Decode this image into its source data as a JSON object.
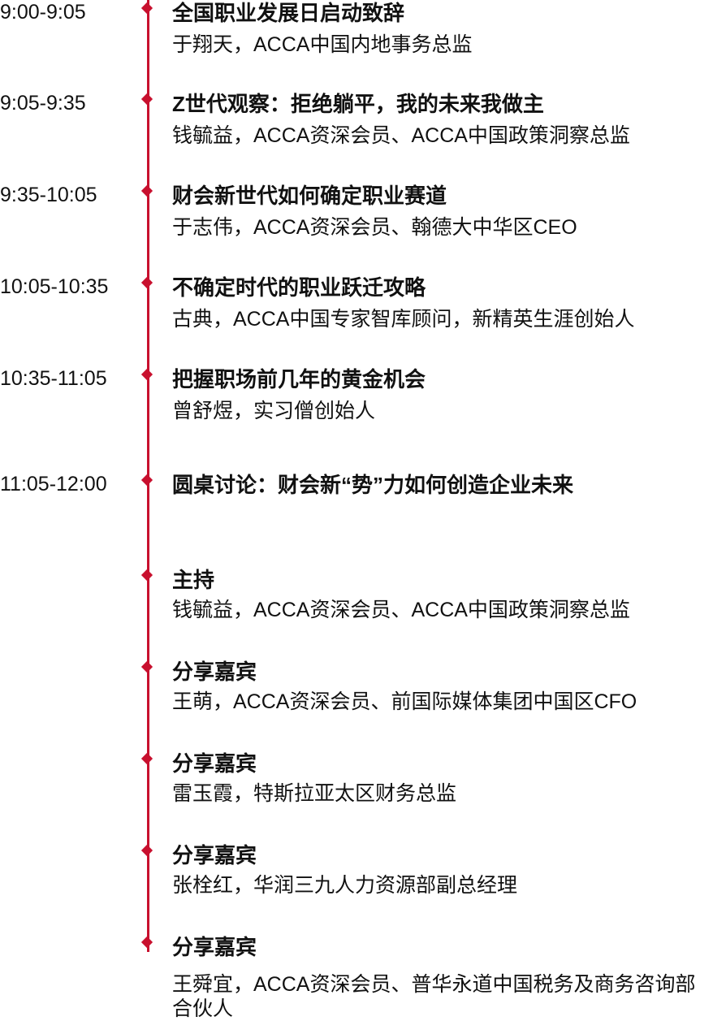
{
  "agenda": {
    "items": [
      {
        "time": "9:00-9:05",
        "title": "全国职业发展日启动致辞",
        "speaker": "于翔天，ACCA中国内地事务总监"
      },
      {
        "time": "9:05-9:35",
        "title": "Z世代观察：拒绝躺平，我的未来我做主",
        "speaker": "钱毓益，ACCA资深会员、ACCA中国政策洞察总监"
      },
      {
        "time": "9:35-10:05",
        "title": "财会新世代如何确定职业赛道",
        "speaker": "于志伟，ACCA资深会员、翰德大中华区CEO"
      },
      {
        "time": "10:05-10:35",
        "title": "不确定时代的职业跃迁攻略",
        "speaker": "古典，ACCA中国专家智库顾问，新精英生涯创始人"
      },
      {
        "time": "10:35-11:05",
        "title": "把握职场前几年的黄金机会",
        "speaker": "曾舒煜，实习僧创始人"
      },
      {
        "time": "11:05-12:00",
        "title": "圆桌讨论：财会新“势”力如何创造企业未来"
      }
    ],
    "panel": [
      {
        "role": "主持",
        "speaker": "钱毓益，ACCA资深会员、ACCA中国政策洞察总监"
      },
      {
        "role": "分享嘉宾",
        "speaker": "王萌，ACCA资深会员、前国际媒体集团中国区CFO"
      },
      {
        "role": "分享嘉宾",
        "speaker": "雷玉霞，特斯拉亚太区财务总监"
      },
      {
        "role": "分享嘉宾",
        "speaker": "张栓红，华润三九人力资源部副总经理"
      },
      {
        "role": "分享嘉宾",
        "speaker": "王舜宜，ACCA资深会员、普华永道中国税务及商务咨询部合伙人"
      }
    ]
  }
}
